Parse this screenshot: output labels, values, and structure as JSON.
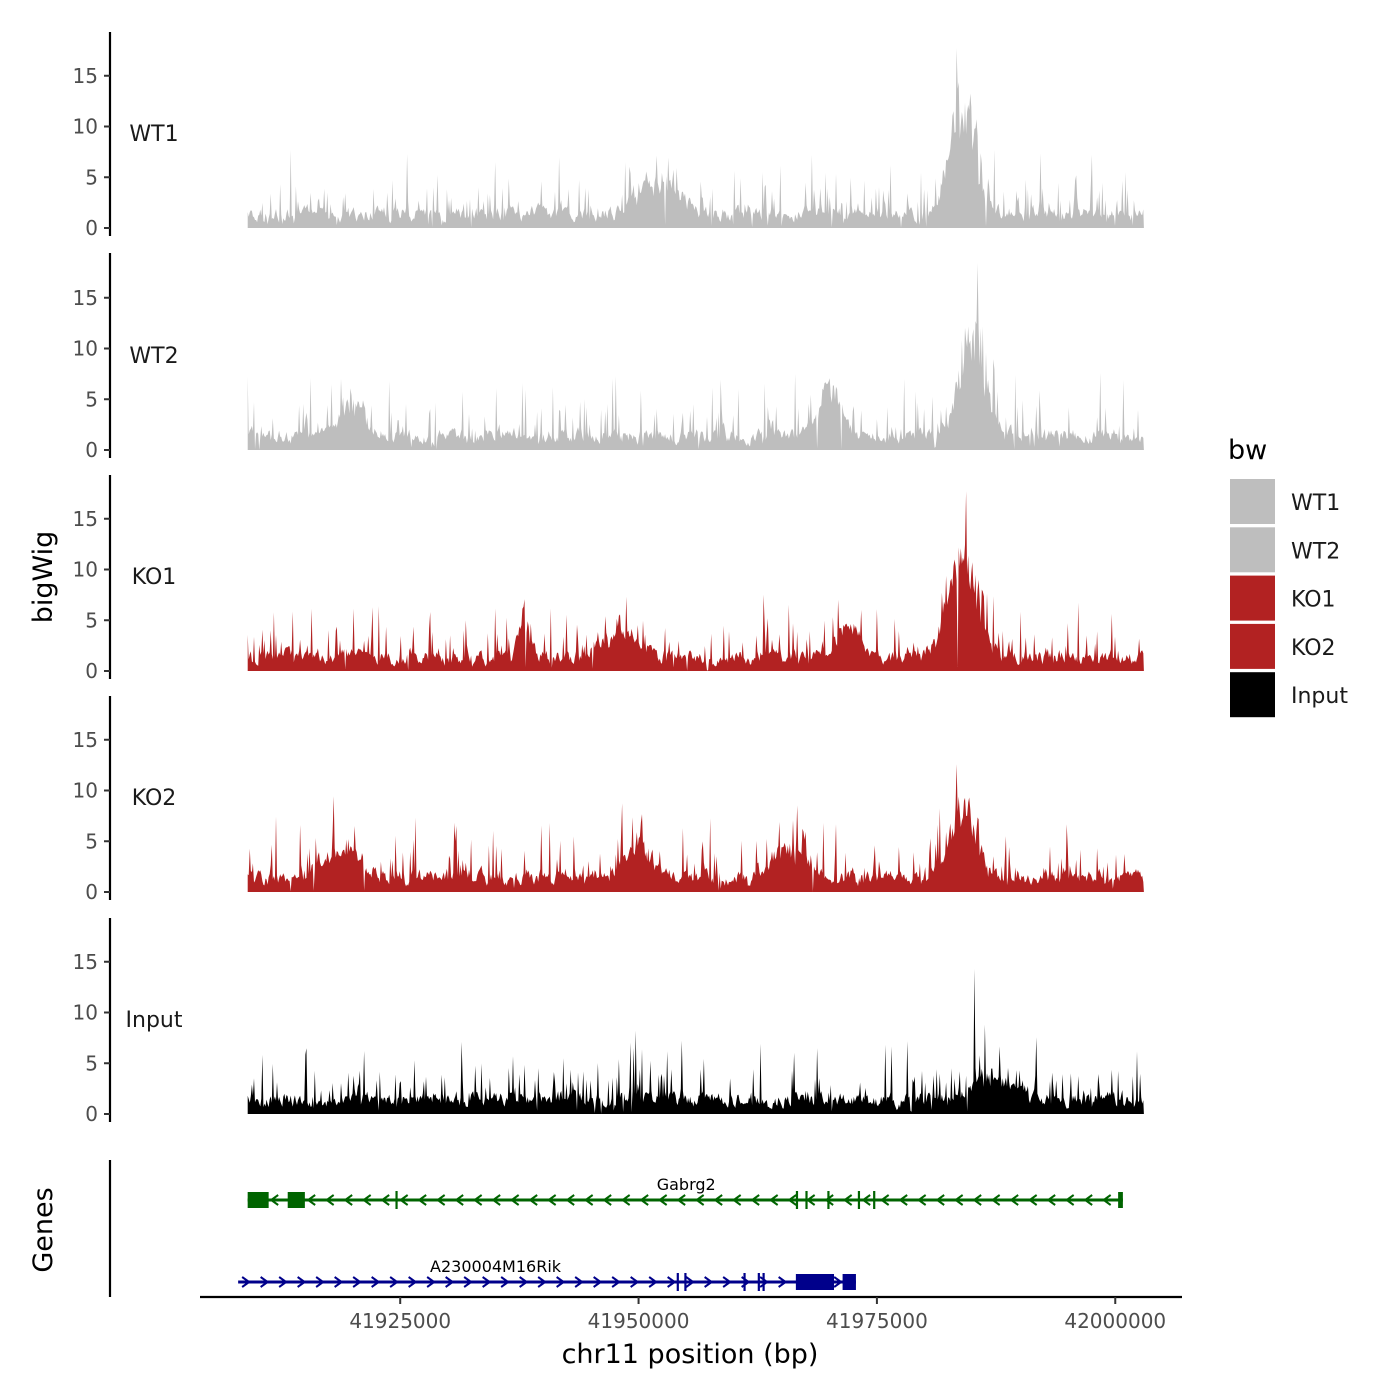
{
  "chart_data": {
    "type": "area",
    "ylabel": "bigWig",
    "xlabel": "chr11 position (bp)",
    "genes_label": "Genes",
    "x_range": [
      41909000,
      42003000
    ],
    "x_plot_range": [
      41904000,
      42007000
    ],
    "x_ticks": [
      41925000,
      41950000,
      41975000,
      42000000
    ],
    "x_tick_labels": [
      "41925000",
      "41950000",
      "41975000",
      "42000000"
    ],
    "y_range": [
      0,
      19.5
    ],
    "y_ticks": [
      0,
      5,
      10,
      15
    ],
    "y_tick_labels": [
      "0",
      "5",
      "10",
      "15"
    ],
    "tracks": [
      {
        "name": "WT1",
        "color": "#BEBEBE",
        "peaks": [
          [
            41984000,
            14.5,
            1800
          ],
          [
            41952000,
            4,
            3000
          ]
        ],
        "max_label": 17.7
      },
      {
        "name": "WT2",
        "color": "#BEBEBE",
        "peaks": [
          [
            41985000,
            14,
            1800
          ],
          [
            41970000,
            6,
            1500
          ],
          [
            41920000,
            4,
            2000
          ]
        ],
        "max_label": 18.4
      },
      {
        "name": "KO1",
        "color": "#B22222",
        "peaks": [
          [
            41984000,
            12,
            2200
          ],
          [
            41938000,
            5,
            800
          ],
          [
            41948000,
            3.5,
            2500
          ],
          [
            41972000,
            3.5,
            2000
          ]
        ],
        "max_label": 17.7
      },
      {
        "name": "KO2",
        "color": "#B22222",
        "peaks": [
          [
            41984000,
            8,
            2000
          ],
          [
            41919000,
            4,
            2500
          ],
          [
            41950000,
            4,
            2000
          ],
          [
            41966000,
            3.5,
            2500
          ]
        ],
        "max_label": 12.6
      },
      {
        "name": "Input",
        "color": "#000000",
        "peaks": [
          [
            41987000,
            3,
            3000
          ]
        ],
        "max_label": 14.3
      }
    ],
    "legend": {
      "title": "bw",
      "entries": [
        {
          "label": "WT1",
          "color": "#BEBEBE"
        },
        {
          "label": "WT2",
          "color": "#BEBEBE"
        },
        {
          "label": "KO1",
          "color": "#B22222"
        },
        {
          "label": "KO2",
          "color": "#B22222"
        },
        {
          "label": "Input",
          "color": "#000000"
        }
      ]
    },
    "genes": [
      {
        "name": "Gabrg2",
        "color": "#006400",
        "strand": "-",
        "start": 41909000,
        "end": 42000800,
        "exons": [
          [
            41909000,
            41911200
          ],
          [
            41913200,
            41915000
          ],
          [
            41924500,
            41924700
          ],
          [
            41966500,
            41966700
          ],
          [
            41967500,
            41967700
          ],
          [
            41969800,
            41970000
          ],
          [
            41973000,
            41973200
          ],
          [
            41974600,
            41974800
          ],
          [
            42000300,
            42000800
          ]
        ],
        "label_pos": 41955000
      },
      {
        "name": "A230004M16Rik",
        "color": "#00008B",
        "strand": "+",
        "start": 41908000,
        "end": 41972800,
        "exons": [
          [
            41954000,
            41954200
          ],
          [
            41954800,
            41955000
          ],
          [
            41961000,
            41961200
          ],
          [
            41962500,
            41962700
          ],
          [
            41963000,
            41963200
          ],
          [
            41966500,
            41970500
          ],
          [
            41971400,
            41972800
          ]
        ],
        "label_pos": 41935000
      }
    ]
  }
}
